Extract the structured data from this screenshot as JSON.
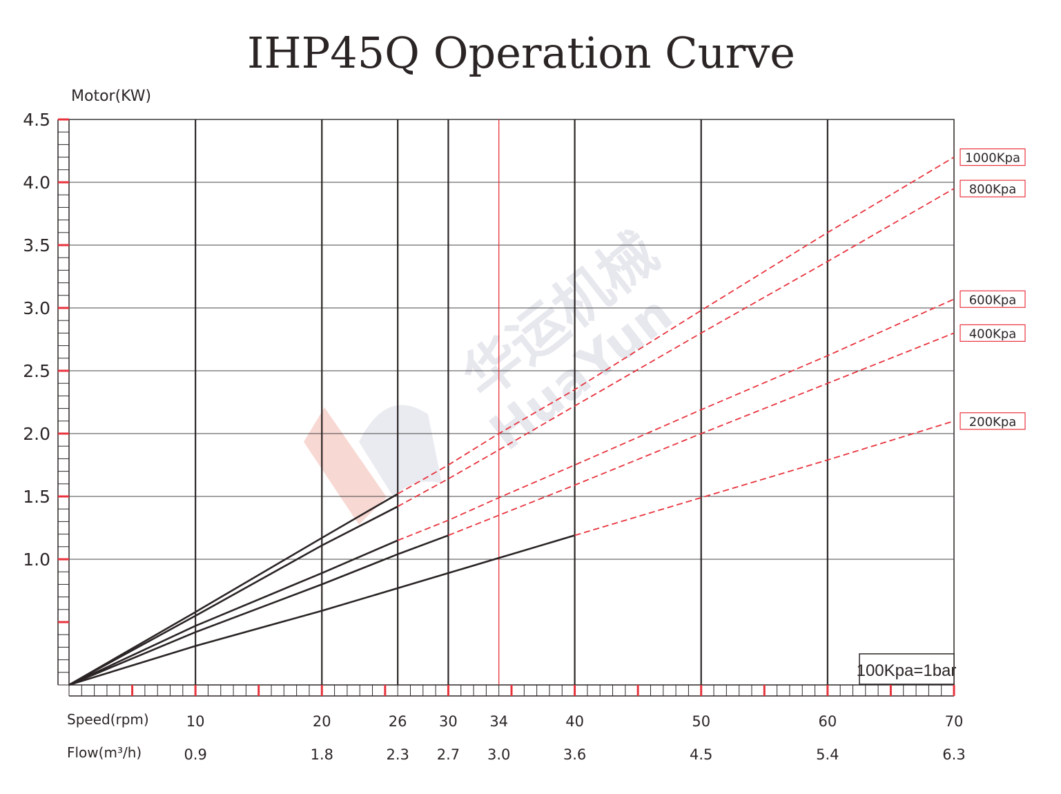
{
  "chart_data": {
    "type": "line",
    "title": "IHP45Q Operation Curve",
    "ylabel": "Motor(KW)",
    "ylim": [
      0,
      4.5
    ],
    "yticks": [
      1.0,
      1.5,
      2.0,
      2.5,
      3.0,
      3.5,
      4.0,
      4.5
    ],
    "ytick_labels": [
      "1.0",
      "1.5",
      "2.0",
      "2.5",
      "3.0",
      "3.5",
      "4.0",
      "4.5"
    ],
    "xlim": [
      0,
      70
    ],
    "x_axis_rows": [
      {
        "label": "Speed(rpm)",
        "ticks": [
          "10",
          "20",
          "26",
          "30",
          "34",
          "40",
          "50",
          "60",
          "70"
        ]
      },
      {
        "label": "Flow(m³/h)",
        "ticks": [
          "0.9",
          "1.8",
          "2.3",
          "2.7",
          "3.0",
          "3.6",
          "4.5",
          "5.4",
          "6.3"
        ]
      }
    ],
    "x_tick_values": [
      10,
      20,
      26,
      30,
      34,
      40,
      50,
      60,
      70
    ],
    "highlighted_x": 34,
    "grid": true,
    "legend_position": "right",
    "series": [
      {
        "name": "1000Kpa",
        "solid_to_x": 26,
        "x": [
          0,
          10,
          20,
          26,
          30,
          34,
          40,
          50,
          60,
          70
        ],
        "values": [
          0,
          0.58,
          1.17,
          1.52,
          1.75,
          2.0,
          2.35,
          2.98,
          3.6,
          4.2
        ]
      },
      {
        "name": "800Kpa",
        "solid_to_x": 26,
        "x": [
          0,
          10,
          20,
          26,
          30,
          34,
          40,
          50,
          60,
          70
        ],
        "values": [
          0,
          0.55,
          1.11,
          1.42,
          1.64,
          1.87,
          2.22,
          2.8,
          3.37,
          3.95
        ]
      },
      {
        "name": "600Kpa",
        "solid_to_x": 26,
        "x": [
          0,
          10,
          20,
          26,
          30,
          34,
          40,
          50,
          60,
          70
        ],
        "values": [
          0,
          0.47,
          0.89,
          1.15,
          1.31,
          1.49,
          1.75,
          2.19,
          2.62,
          3.07
        ]
      },
      {
        "name": "400Kpa",
        "solid_to_x": 30,
        "x": [
          0,
          10,
          20,
          26,
          30,
          34,
          40,
          50,
          60,
          70
        ],
        "values": [
          0,
          0.42,
          0.8,
          1.04,
          1.19,
          1.35,
          1.59,
          2.0,
          2.4,
          2.8
        ]
      },
      {
        "name": "200Kpa",
        "solid_to_x": 40,
        "x": [
          0,
          10,
          20,
          26,
          30,
          34,
          40,
          50,
          60,
          70
        ],
        "values": [
          0,
          0.31,
          0.59,
          0.77,
          0.89,
          1.01,
          1.19,
          1.49,
          1.79,
          2.1
        ]
      }
    ],
    "annotation": "100Kpa=1bar"
  },
  "watermark": {
    "text_cn": "华运机械",
    "text_en": "HuaYun"
  },
  "colors": {
    "red": "#e8323c",
    "dark": "#2b2424",
    "grid": "#444444",
    "watermark": "#c9cdd8"
  }
}
